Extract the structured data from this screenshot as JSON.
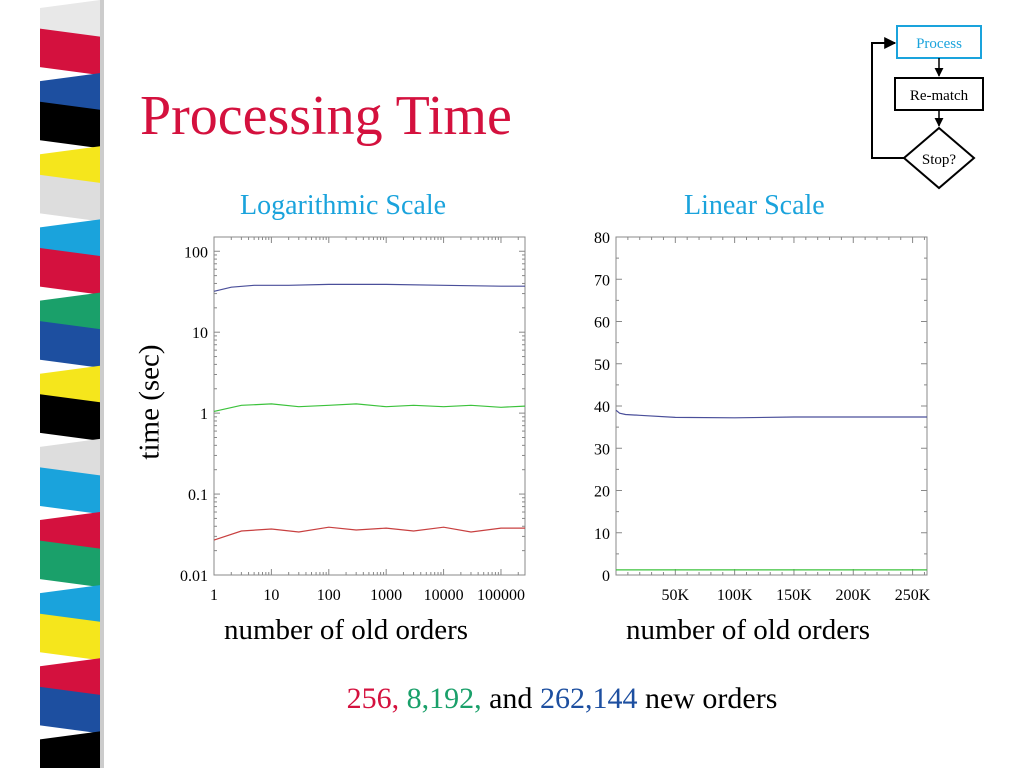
{
  "slide": {
    "title": "Processing Time",
    "caption": [
      {
        "text": "256,",
        "color": "#d4113e"
      },
      {
        "text": " 8,192,",
        "color": "#1aa06a"
      },
      {
        "text": " and ",
        "color": "#000000"
      },
      {
        "text": "262,144",
        "color": "#1d4fa0"
      },
      {
        "text": " new orders",
        "color": "#000000"
      }
    ]
  },
  "decor": {
    "stripe_colors": [
      "#e8e8e8",
      "#d4113e",
      "#1d4fa0",
      "#000000",
      "#f5e61c",
      "#dddddd",
      "#1aa3dc",
      "#d4113e",
      "#1aa06a",
      "#1d4fa0",
      "#f5e61c",
      "#000000",
      "#dddddd",
      "#1aa3dc",
      "#d4113e",
      "#1aa06a",
      "#1aa3dc",
      "#f5e61c",
      "#d4113e",
      "#1d4fa0",
      "#000000"
    ]
  },
  "flowchart": {
    "process": "Process",
    "rematch": "Re-match",
    "stop": "Stop?",
    "process_color": "#1aa3dc"
  },
  "chart_data": [
    {
      "type": "line",
      "title": "Logarithmic Scale",
      "xlabel": "number of old orders",
      "ylabel": "time (sec)",
      "xscale": "log",
      "yscale": "log",
      "xlim": [
        1,
        262144
      ],
      "ylim": [
        0.01,
        150
      ],
      "xticks": [
        1,
        10,
        100,
        1000,
        10000,
        100000
      ],
      "xtick_labels": [
        "1",
        "10",
        "100",
        "1000",
        "10000",
        "100000"
      ],
      "yticks": [
        0.01,
        0.1,
        1,
        10,
        100
      ],
      "ytick_labels": [
        "0.01",
        "0.1",
        "1",
        "10",
        "100"
      ],
      "series": [
        {
          "color": "#4a4f9a",
          "x": [
            1,
            2,
            5,
            20,
            100,
            1000,
            10000,
            100000,
            262144
          ],
          "y": [
            32,
            36,
            38,
            38,
            39,
            39,
            38,
            37,
            37
          ]
        },
        {
          "color": "#3cc23c",
          "x": [
            1,
            3,
            10,
            30,
            100,
            300,
            1000,
            3000,
            10000,
            30000,
            100000,
            262144
          ],
          "y": [
            1.05,
            1.25,
            1.3,
            1.2,
            1.25,
            1.3,
            1.2,
            1.25,
            1.2,
            1.25,
            1.18,
            1.22
          ]
        },
        {
          "color": "#c84040",
          "x": [
            1,
            3,
            10,
            30,
            100,
            300,
            1000,
            3000,
            10000,
            30000,
            100000,
            262144
          ],
          "y": [
            0.027,
            0.035,
            0.037,
            0.034,
            0.039,
            0.036,
            0.038,
            0.035,
            0.039,
            0.034,
            0.038,
            0.038
          ]
        }
      ]
    },
    {
      "type": "line",
      "title": "Linear Scale",
      "xlabel": "number of old orders",
      "xlim": [
        0,
        262144
      ],
      "ylim": [
        0,
        80
      ],
      "xticks": [
        50000,
        100000,
        150000,
        200000,
        250000
      ],
      "xtick_labels": [
        "50K",
        "100K",
        "150K",
        "200K",
        "250K"
      ],
      "yticks": [
        0,
        10,
        20,
        30,
        40,
        50,
        60,
        70,
        80
      ],
      "ytick_labels": [
        "0",
        "10",
        "20",
        "30",
        "40",
        "50",
        "60",
        "70",
        "80"
      ],
      "series": [
        {
          "color": "#4a4f9a",
          "x": [
            0,
            3000,
            8000,
            20000,
            50000,
            100000,
            150000,
            200000,
            262144
          ],
          "y": [
            39,
            38.3,
            38,
            37.8,
            37.3,
            37.2,
            37.4,
            37.4,
            37.4
          ]
        },
        {
          "color": "#3cc23c",
          "x": [
            0,
            262144
          ],
          "y": [
            1.2,
            1.2
          ]
        }
      ]
    }
  ]
}
